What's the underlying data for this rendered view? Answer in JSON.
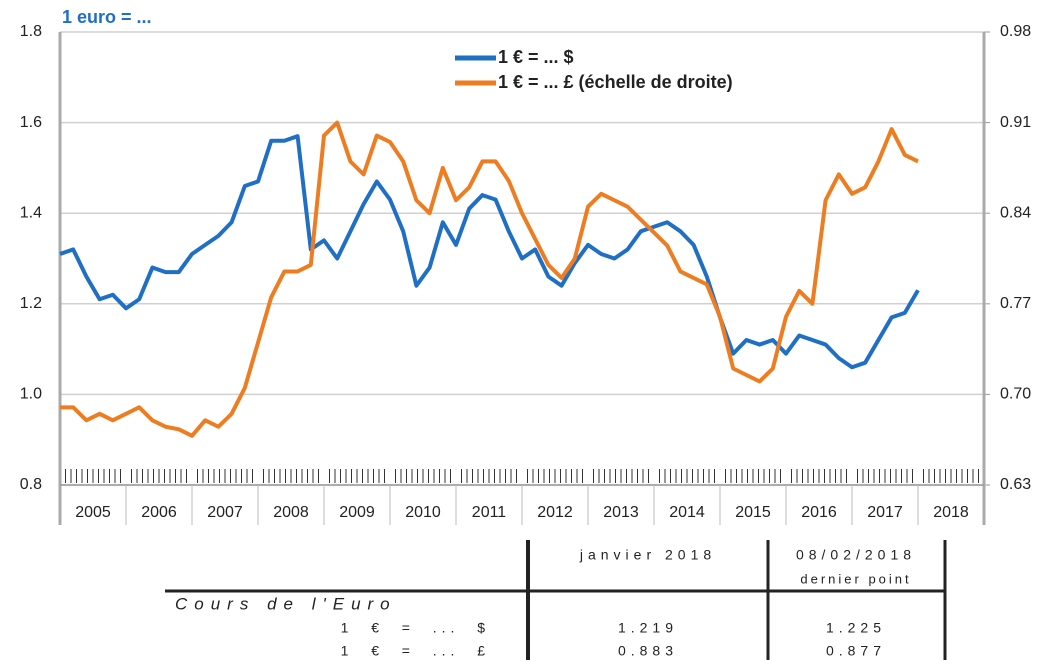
{
  "chart_data": {
    "type": "line",
    "axis_label": "1 euro = ...",
    "categories": [
      "2005",
      "2006",
      "2007",
      "2008",
      "2009",
      "2010",
      "2011",
      "2012",
      "2013",
      "2014",
      "2015",
      "2016",
      "2017",
      "2018"
    ],
    "xlim": [
      2005,
      2019
    ],
    "x": [
      2005.0,
      2005.2,
      2005.4,
      2005.6,
      2005.8,
      2006.0,
      2006.2,
      2006.4,
      2006.6,
      2006.8,
      2007.0,
      2007.2,
      2007.4,
      2007.6,
      2007.8,
      2008.0,
      2008.2,
      2008.4,
      2008.6,
      2008.8,
      2009.0,
      2009.2,
      2009.4,
      2009.6,
      2009.8,
      2010.0,
      2010.2,
      2010.4,
      2010.6,
      2010.8,
      2011.0,
      2011.2,
      2011.4,
      2011.6,
      2011.8,
      2012.0,
      2012.2,
      2012.4,
      2012.6,
      2012.8,
      2013.0,
      2013.2,
      2013.4,
      2013.6,
      2013.8,
      2014.0,
      2014.2,
      2014.4,
      2014.6,
      2014.8,
      2015.0,
      2015.2,
      2015.4,
      2015.6,
      2015.8,
      2016.0,
      2016.2,
      2016.4,
      2016.6,
      2016.8,
      2017.0,
      2017.2,
      2017.4,
      2017.6,
      2017.8,
      2018.0
    ],
    "series": [
      {
        "name": "1 € = ... $",
        "color": "#1f6fc5",
        "values": [
          1.31,
          1.32,
          1.26,
          1.21,
          1.22,
          1.19,
          1.21,
          1.28,
          1.27,
          1.27,
          1.31,
          1.33,
          1.35,
          1.38,
          1.46,
          1.47,
          1.56,
          1.56,
          1.57,
          1.32,
          1.34,
          1.3,
          1.36,
          1.42,
          1.47,
          1.43,
          1.36,
          1.24,
          1.28,
          1.38,
          1.33,
          1.41,
          1.44,
          1.43,
          1.36,
          1.3,
          1.32,
          1.26,
          1.24,
          1.29,
          1.33,
          1.31,
          1.3,
          1.32,
          1.36,
          1.37,
          1.38,
          1.36,
          1.33,
          1.26,
          1.17,
          1.09,
          1.12,
          1.11,
          1.12,
          1.09,
          1.13,
          1.12,
          1.11,
          1.08,
          1.06,
          1.07,
          1.12,
          1.17,
          1.18,
          1.23
        ]
      },
      {
        "name": "1 € = ... £ (échelle de droite)",
        "color": "#ee7d22",
        "axis": "y2",
        "values": [
          0.69,
          0.69,
          0.68,
          0.685,
          0.68,
          0.685,
          0.69,
          0.68,
          0.675,
          0.673,
          0.668,
          0.68,
          0.675,
          0.685,
          0.705,
          0.74,
          0.775,
          0.795,
          0.795,
          0.8,
          0.9,
          0.91,
          0.88,
          0.87,
          0.9,
          0.895,
          0.88,
          0.85,
          0.84,
          0.875,
          0.85,
          0.86,
          0.88,
          0.88,
          0.865,
          0.84,
          0.82,
          0.8,
          0.79,
          0.805,
          0.845,
          0.855,
          0.85,
          0.845,
          0.835,
          0.825,
          0.815,
          0.795,
          0.79,
          0.785,
          0.76,
          0.72,
          0.715,
          0.71,
          0.72,
          0.76,
          0.78,
          0.77,
          0.85,
          0.87,
          0.855,
          0.86,
          0.88,
          0.905,
          0.885,
          0.88
        ]
      }
    ],
    "ylim": [
      0.8,
      1.8
    ],
    "yticks": [
      0.8,
      {
        "value": 1,
        "label": "1.0"
      },
      1.2,
      1.4,
      1.6,
      1.8
    ],
    "y2lim": [
      0.63,
      0.98
    ],
    "y2ticks": [
      0.63,
      {
        "value": 0.7,
        "label": "0.70"
      },
      0.77,
      0.84,
      0.91,
      0.98
    ],
    "grid": true
  },
  "table": {
    "header": [
      "janvier 2018",
      "08/02/2018",
      "dernier point"
    ],
    "section": "Cours de l'Euro",
    "rows": [
      [
        "1  €  =  ...  $",
        "1.219",
        "1.225"
      ],
      [
        "1  €  =  ...  £",
        "0.883",
        "0.877"
      ]
    ]
  }
}
